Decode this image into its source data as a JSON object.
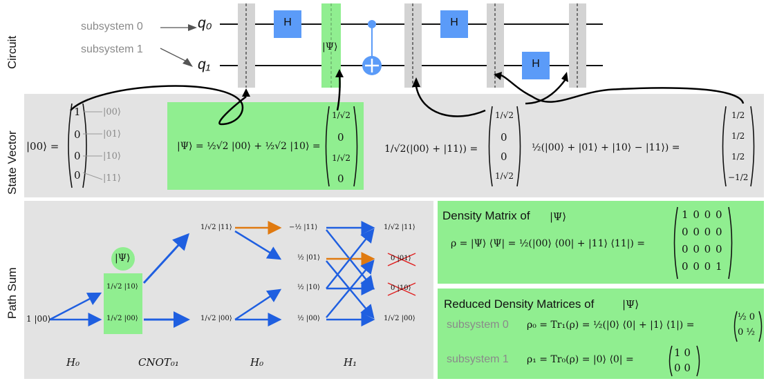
{
  "rows": {
    "circuit": "Circuit",
    "state_vector": "State Vector",
    "path_sum": "Path Sum"
  },
  "circuit": {
    "subsystem0_label": "subsystem 0",
    "subsystem1_label": "subsystem 1",
    "q0_label": "q₀",
    "q1_label": "q₁",
    "h_gate": "H",
    "psi_label": "|Ψ⟩"
  },
  "state_vector": {
    "lhs0": "|00⟩ =",
    "vec0": [
      "1",
      "0",
      "0",
      "0"
    ],
    "basis": [
      "|00⟩",
      "|01⟩",
      "|10⟩",
      "|11⟩"
    ],
    "psi_expr": "|Ψ⟩ = ½√2 |00⟩ + ½√2 |10⟩ =",
    "psi_vec": [
      "1/√2",
      "0",
      "1/√2",
      "0"
    ],
    "bell_expr": "1/√2(|00⟩ + |11⟩) =",
    "bell_vec": [
      "1/√2",
      "0",
      "0",
      "1/√2"
    ],
    "final_expr": "½(|00⟩ + |01⟩ + |10⟩ − |11⟩) =",
    "final_vec": [
      "1/2",
      "1/2",
      "1/2",
      "−1/2"
    ]
  },
  "path_sum": {
    "start": "1 |00⟩",
    "psi_badge": "|Ψ⟩",
    "col1": [
      "1/√2 |10⟩",
      "1/√2 |00⟩"
    ],
    "col2": [
      "1/√2 |11⟩",
      "1/√2 |00⟩"
    ],
    "col3": [
      "−½ |11⟩",
      "½ |01⟩",
      "½ |10⟩",
      "½ |00⟩"
    ],
    "col4": [
      "1/√2 |11⟩",
      "0 |01⟩",
      "0 |10⟩",
      "1/√2 |00⟩"
    ],
    "stage_labels": [
      "H₀",
      "CNOT₀₁",
      "H₀",
      "H₁"
    ],
    "colors": {
      "path_blue": "#1f5fe0",
      "path_orange": "#e07a10",
      "cross_red": "#e02020"
    }
  },
  "density": {
    "title": "Density Matrix of",
    "psi": "|Ψ⟩",
    "rho_expr": "ρ = |Ψ⟩ ⟨Ψ| = ½(|00⟩ ⟨00| + |11⟩ ⟨11|) =",
    "matrix": [
      [
        "1",
        "0",
        "0",
        "0"
      ],
      [
        "0",
        "0",
        "0",
        "0"
      ],
      [
        "0",
        "0",
        "0",
        "0"
      ],
      [
        "0",
        "0",
        "0",
        "1"
      ]
    ]
  },
  "reduced": {
    "title": "Reduced Density Matrices of",
    "psi": "|Ψ⟩",
    "sub0_label": "subsystem 0",
    "rho0_expr": "ρ₀ = Tr₁(ρ) = ½(|0⟩ ⟨0| + |1⟩ ⟨1|) =",
    "rho0_matrix": [
      [
        "½",
        "0"
      ],
      [
        "0",
        "½"
      ]
    ],
    "sub1_label": "subsystem 1",
    "rho1_expr": "ρ₁ = Tr₀(ρ) = |0⟩ ⟨0| =",
    "rho1_matrix": [
      [
        "1",
        "0"
      ],
      [
        "0",
        "0"
      ]
    ]
  },
  "theme": {
    "gate_blue": "#5b9bf8",
    "panel_green": "#90ee90",
    "panel_gray": "#e3e3e3",
    "barrier_gray": "#d3d3d3"
  }
}
